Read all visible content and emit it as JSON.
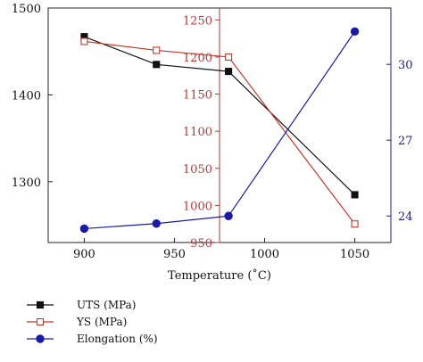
{
  "chart_data": {
    "type": "line",
    "xlabel": "Temperature (˚C)",
    "x_ticks": [
      "900",
      "950",
      "1000",
      "1050"
    ],
    "xlim": [
      880,
      1070
    ],
    "axes": {
      "left": {
        "ylim": [
          1230,
          1500
        ],
        "ticks": [
          "1300",
          "1400",
          "1500"
        ],
        "color": "#111111"
      },
      "inner": {
        "ylim": [
          950,
          1266
        ],
        "ticks": [
          "950",
          "1000",
          "1050",
          "1100",
          "1150",
          "1200",
          "1250"
        ],
        "color": "#b33a3a",
        "x_position": 975
      },
      "right": {
        "ylim": [
          22.95,
          32.23
        ],
        "ticks": [
          "24",
          "27",
          "30"
        ],
        "color": "#1c1c8c"
      }
    },
    "series": [
      {
        "name": "UTS (MPa)",
        "axis": "left",
        "marker": "filled-square",
        "color": "#111111",
        "x": [
          900,
          940,
          980,
          1050
        ],
        "values": [
          1467,
          1435,
          1427,
          1285
        ]
      },
      {
        "name": "YS (MPa)",
        "axis": "inner",
        "marker": "open-square",
        "color": "#c0392b",
        "x": [
          900,
          940,
          980,
          1050
        ],
        "values": [
          1221,
          1209,
          1200,
          975
        ]
      },
      {
        "name": "Elongation (%)",
        "axis": "right",
        "marker": "filled-circle",
        "color": "#1a1aa8",
        "x": [
          900,
          940,
          980,
          1050
        ],
        "values": [
          23.5,
          23.7,
          24.0,
          31.3
        ]
      }
    ]
  }
}
